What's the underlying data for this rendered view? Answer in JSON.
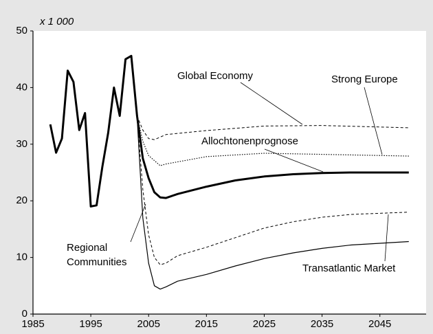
{
  "chart_data": {
    "type": "line",
    "y_unit_label": "x 1 000",
    "xlim": [
      1985,
      2053
    ],
    "xticks": [
      1985,
      1995,
      2005,
      2015,
      2025,
      2035,
      2045
    ],
    "ylim": [
      0,
      50
    ],
    "yticks": [
      0,
      10,
      20,
      30,
      40,
      50
    ],
    "series": [
      {
        "name": "Allochtonenprognose",
        "color": "#000000",
        "style": "solid",
        "width": 3,
        "x": [
          1988,
          1989,
          1990,
          1991,
          1992,
          1993,
          1994,
          1995,
          1996,
          1997,
          1998,
          1999,
          2000,
          2001,
          2002,
          2003,
          2004,
          2005,
          2006,
          2007,
          2008,
          2010,
          2015,
          2020,
          2025,
          2030,
          2035,
          2040,
          2050
        ],
        "values": [
          33.5,
          28.5,
          31,
          43,
          41,
          32.5,
          35.5,
          19,
          19.2,
          26,
          32,
          40,
          35,
          45,
          45.6,
          35,
          27.5,
          24,
          21.5,
          20.6,
          20.5,
          21.2,
          22.5,
          23.6,
          24.3,
          24.7,
          24.9,
          25.0,
          25.0
        ]
      },
      {
        "name": "Global Economy",
        "color": "#000000",
        "style": "dashed",
        "width": 1,
        "x": [
          2003,
          2004,
          2005,
          2006,
          2008,
          2015,
          2025,
          2035,
          2050
        ],
        "values": [
          35,
          32.5,
          31,
          30.8,
          31.7,
          32.4,
          33.2,
          33.3,
          32.9
        ]
      },
      {
        "name": "Strong Europe",
        "color": "#000000",
        "style": "dotted",
        "width": 1.2,
        "x": [
          2003,
          2004,
          2005,
          2007,
          2008,
          2015,
          2025,
          2035,
          2050
        ],
        "values": [
          35,
          30.5,
          28,
          26.2,
          26.5,
          27.8,
          28.4,
          28.2,
          27.9
        ]
      },
      {
        "name": "Transatlantic Market",
        "color": "#000000",
        "style": "dashed",
        "width": 1,
        "x": [
          2003,
          2004,
          2005,
          2006,
          2007,
          2008,
          2010,
          2015,
          2020,
          2025,
          2030,
          2035,
          2040,
          2050
        ],
        "values": [
          35,
          22,
          14,
          10,
          8.7,
          9,
          10.3,
          11.8,
          13.5,
          15.2,
          16.3,
          17.1,
          17.6,
          18.0
        ]
      },
      {
        "name": "Regional Communities",
        "color": "#000000",
        "style": "solid",
        "width": 1.2,
        "x": [
          2003,
          2004,
          2005,
          2006,
          2007,
          2008,
          2010,
          2015,
          2020,
          2025,
          2030,
          2035,
          2040,
          2050
        ],
        "values": [
          35,
          17,
          9,
          5,
          4.4,
          4.8,
          5.8,
          7,
          8.5,
          9.8,
          10.8,
          11.6,
          12.2,
          12.8
        ]
      }
    ]
  }
}
